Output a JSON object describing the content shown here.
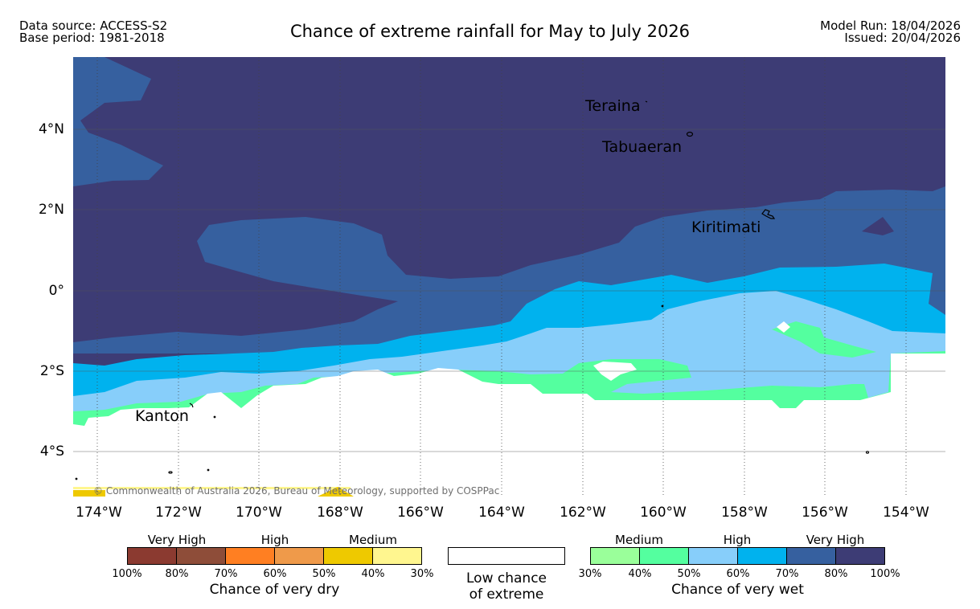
{
  "header": {
    "data_source": "Data source: ACCESS-S2",
    "base_period": "Base period: 1981-2018",
    "title": "Chance of extreme rainfall for May to July 2026",
    "model_run": "Model Run: 18/04/2026",
    "issued": "Issued: 20/04/2026"
  },
  "map": {
    "lat_labels": [
      "4°N",
      "2°N",
      "0°",
      "2°S",
      "4°S"
    ],
    "lon_labels": [
      "174°W",
      "172°W",
      "170°W",
      "168°W",
      "166°W",
      "164°W",
      "162°W",
      "160°W",
      "158°W",
      "156°W",
      "154°W"
    ],
    "places": {
      "teraina": "Teraina",
      "tabuaeran": "Tabuaeran",
      "kiritimati": "Kiritimati",
      "kanton": "Kanton"
    },
    "credit": "© Commonwealth of Australia 2026, Bureau of Meteorology, supported by COSPPac"
  },
  "legend": {
    "dry": {
      "headers": [
        "Very High",
        "High",
        "Medium"
      ],
      "colors": [
        "#8b3a30",
        "#8e4d39",
        "#ff7f22",
        "#ef9a4a",
        "#eec900",
        "#fff68f"
      ],
      "ticks": [
        "100%",
        "80%",
        "70%",
        "60%",
        "50%",
        "40%",
        "30%"
      ],
      "title": "Chance of very dry"
    },
    "low": {
      "line1": "Low chance",
      "line2": "of extreme"
    },
    "wet": {
      "headers": [
        "Medium",
        "High",
        "Very High"
      ],
      "colors": [
        "#9aff9a",
        "#54ff9f",
        "#87cefa",
        "#00b2ee",
        "#36609f",
        "#3d3c75"
      ],
      "ticks": [
        "30%",
        "40%",
        "50%",
        "60%",
        "70%",
        "80%",
        "100%"
      ],
      "title": "Chance of very wet"
    }
  }
}
